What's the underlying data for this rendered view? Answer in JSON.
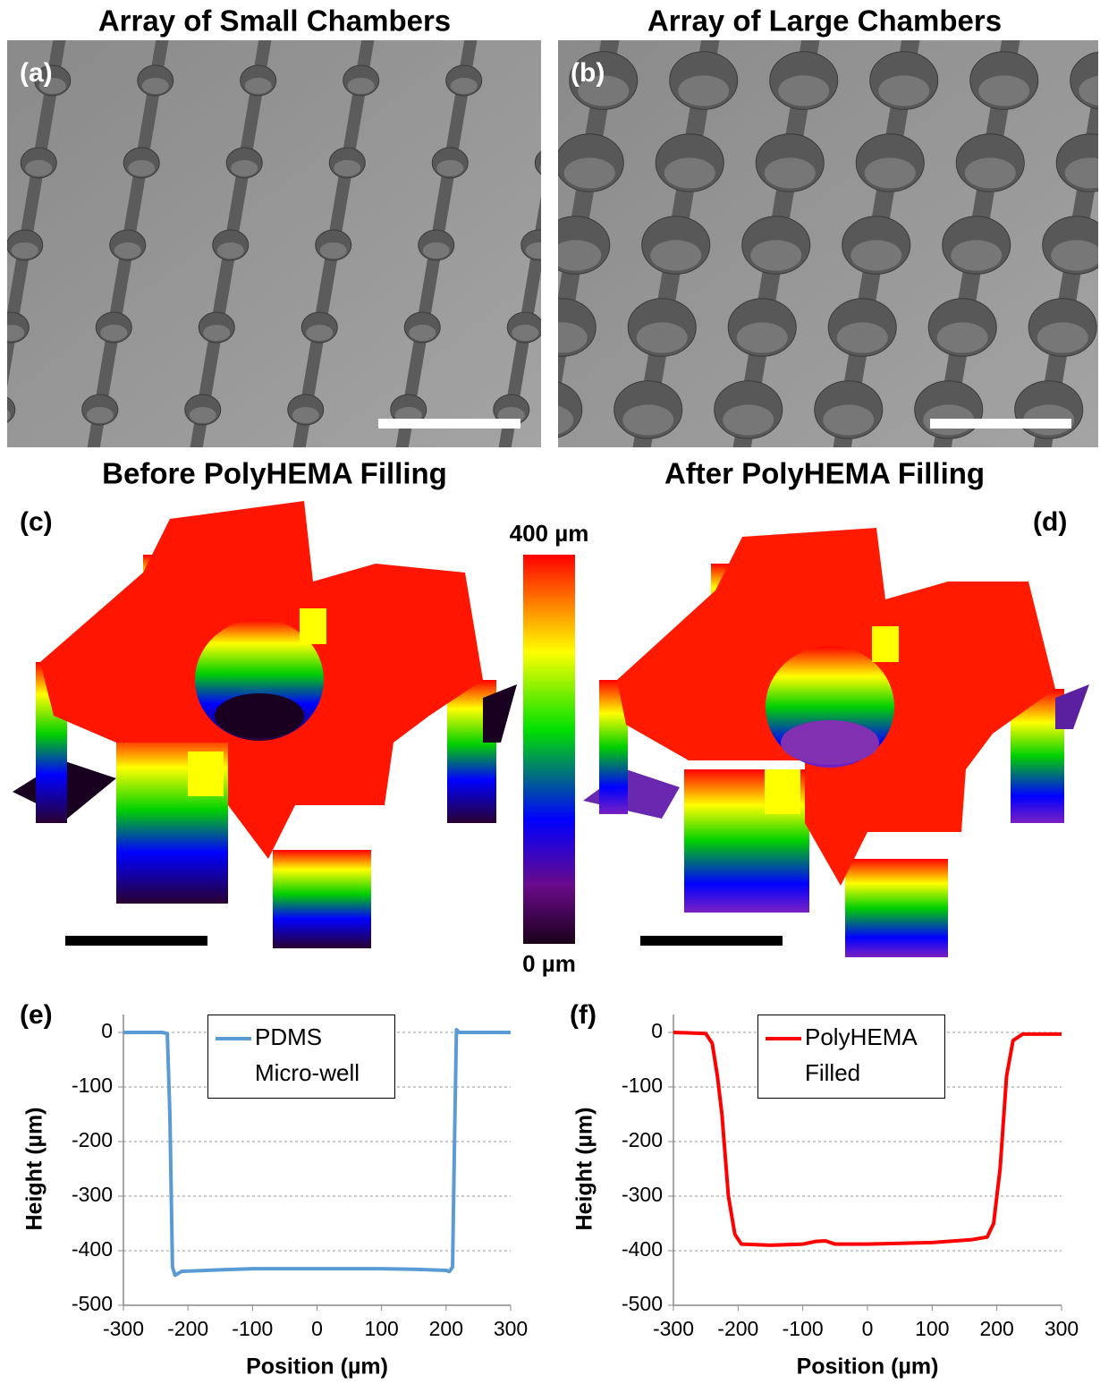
{
  "figure": {
    "panel_a": {
      "title": "Array of Small Chambers",
      "label": "(a)"
    },
    "panel_b": {
      "title": "Array of Large Chambers",
      "label": "(b)"
    },
    "panel_c": {
      "title": "Before PolyHEMA Filling",
      "label": "(c)"
    },
    "panel_d": {
      "title": "After PolyHEMA Filling",
      "label": "(d)"
    },
    "colorbar": {
      "top_label": "400 µm",
      "bottom_label": "0 µm"
    }
  },
  "chart_data": [
    {
      "type": "line",
      "label": "(e)",
      "xlabel": "Position (µm)",
      "ylabel": "Height (µm)",
      "x": [
        -300,
        -240,
        -232,
        -228,
        -224,
        -220,
        -210,
        -150,
        -100,
        0,
        100,
        150,
        200,
        205,
        210,
        213,
        216,
        220,
        240,
        300
      ],
      "series": [
        {
          "name": "PDMS Micro-well",
          "color": "#5b9bd5",
          "values": [
            0,
            0,
            -2,
            -150,
            -430,
            -445,
            -438,
            -435,
            -433,
            -433,
            -433,
            -434,
            -436,
            -438,
            -430,
            -200,
            5,
            0,
            0,
            0
          ]
        }
      ],
      "xlim": [
        -300,
        300
      ],
      "ylim": [
        -500,
        0
      ],
      "xticks": [
        -300,
        -200,
        -100,
        0,
        100,
        200,
        300
      ],
      "yticks": [
        -500,
        -400,
        -300,
        -200,
        -100,
        0
      ],
      "grid": true
    },
    {
      "type": "line",
      "label": "(f)",
      "xlabel": "Position (µm)",
      "ylabel": "Height (µm)",
      "x": [
        -300,
        -250,
        -240,
        -232,
        -225,
        -215,
        -205,
        -195,
        -150,
        -100,
        -80,
        -65,
        -50,
        0,
        100,
        160,
        185,
        195,
        205,
        215,
        225,
        240,
        300
      ],
      "series": [
        {
          "name": "PolyHEMA Filled",
          "color": "#ff0000",
          "values": [
            0,
            -2,
            -20,
            -80,
            -150,
            -300,
            -370,
            -388,
            -390,
            -388,
            -383,
            -382,
            -388,
            -388,
            -385,
            -380,
            -375,
            -350,
            -250,
            -80,
            -15,
            -3,
            -3
          ]
        }
      ],
      "xlim": [
        -300,
        300
      ],
      "ylim": [
        -500,
        0
      ],
      "xticks": [
        -300,
        -200,
        -100,
        0,
        100,
        200,
        300
      ],
      "yticks": [
        -500,
        -400,
        -300,
        -200,
        -100,
        0
      ],
      "grid": true
    }
  ]
}
